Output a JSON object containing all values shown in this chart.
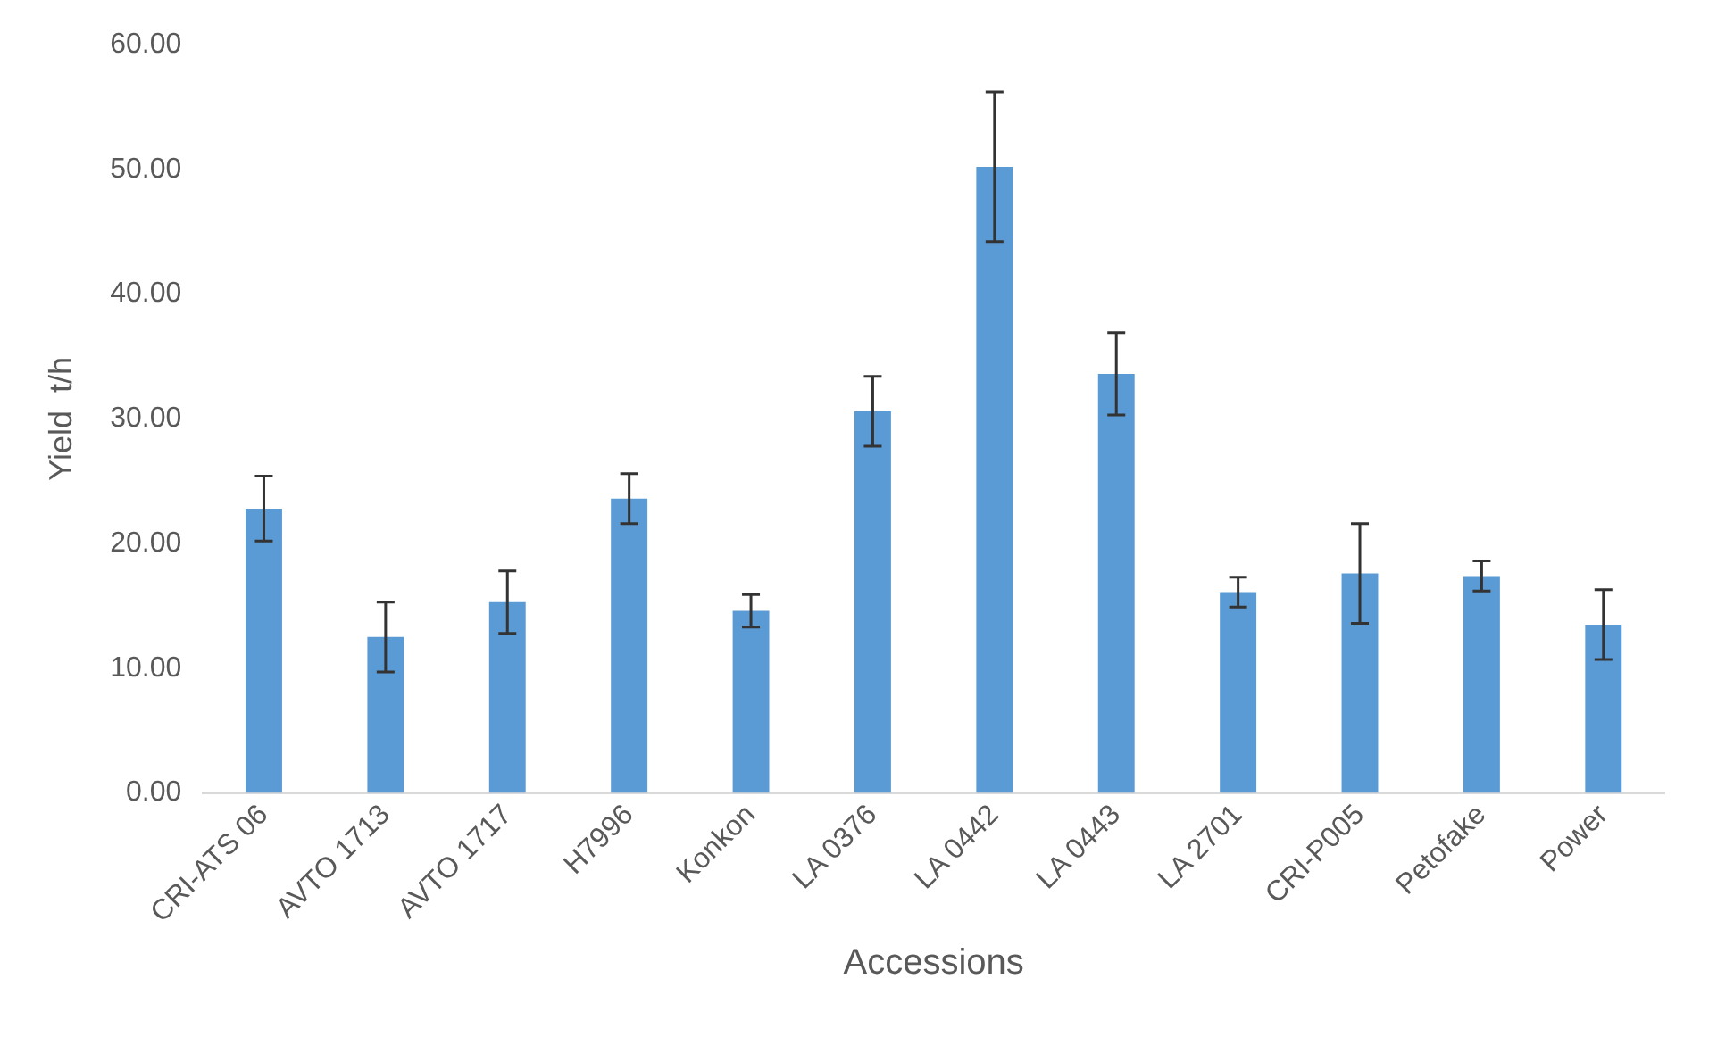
{
  "chart_data": {
    "type": "bar",
    "xlabel": "Accessions",
    "ylabel": "Yield  t/h",
    "categories": [
      "CRI-ATS 06",
      "AVTO 1713",
      "AVTO 1717",
      "H7996",
      "Konkon",
      "LA 0376",
      "LA 0442",
      "LA 0443",
      "LA 2701",
      "CRI-P005",
      "Petofake",
      "Power"
    ],
    "values": [
      22.8,
      12.5,
      15.3,
      23.6,
      14.6,
      30.6,
      50.2,
      33.6,
      16.1,
      17.6,
      17.4,
      13.5
    ],
    "errors": [
      2.6,
      2.8,
      2.5,
      2.0,
      1.3,
      2.8,
      6.0,
      3.3,
      1.2,
      4.0,
      1.2,
      2.8
    ],
    "color": "#5b9bd5",
    "ylim": [
      0,
      60
    ],
    "yticks": [
      {
        "value": 0,
        "label": "0.00"
      },
      {
        "value": 10,
        "label": "10.00"
      },
      {
        "value": 20,
        "label": "20.00"
      },
      {
        "value": 30,
        "label": "30.00"
      },
      {
        "value": 40,
        "label": "40.00"
      },
      {
        "value": 50,
        "label": "50.00"
      },
      {
        "value": 60,
        "label": "60.00"
      }
    ],
    "grid": false,
    "legend": false
  }
}
